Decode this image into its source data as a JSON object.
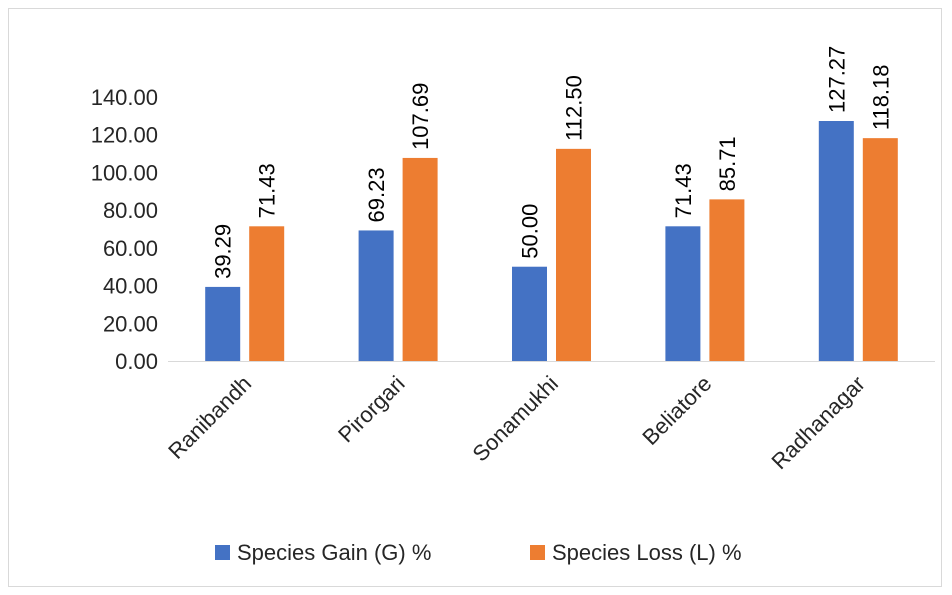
{
  "chart_data": {
    "type": "bar",
    "categories": [
      "Ranibandh",
      "Pirorgari",
      "Sonamukhi",
      "Beliatore",
      "Radhanagar"
    ],
    "series": [
      {
        "name": "Species Gain (G) %",
        "values": [
          39.29,
          69.23,
          50.0,
          71.43,
          127.27
        ],
        "labels": [
          "39.29",
          "69.23",
          "50.00",
          "71.43",
          "127.27"
        ],
        "color": "#4472C4"
      },
      {
        "name": "Species Loss (L) %",
        "values": [
          71.43,
          107.69,
          112.5,
          85.71,
          118.18
        ],
        "labels": [
          "71.43",
          "107.69",
          "112.50",
          "85.71",
          "118.18"
        ],
        "color": "#ED7D31"
      }
    ],
    "ylim": [
      0,
      140
    ],
    "yticks": [
      "0.00",
      "20.00",
      "40.00",
      "60.00",
      "80.00",
      "100.00",
      "120.00",
      "140.00"
    ],
    "ytick_step": 20,
    "grid": false,
    "legend": "bottom",
    "title": "",
    "xlabel": "",
    "ylabel": ""
  }
}
